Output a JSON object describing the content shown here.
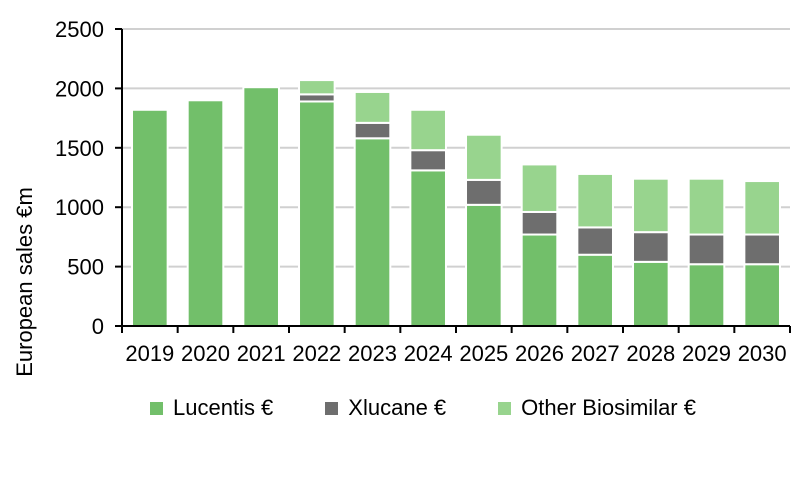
{
  "chart_data": {
    "type": "bar",
    "stacked": true,
    "categories": [
      "2019",
      "2020",
      "2021",
      "2022",
      "2023",
      "2024",
      "2025",
      "2026",
      "2027",
      "2028",
      "2029",
      "2030"
    ],
    "series": [
      {
        "name": "Lucentis €",
        "color": "#72bf6a",
        "values": [
          1820,
          1900,
          2010,
          1890,
          1580,
          1310,
          1020,
          770,
          600,
          540,
          520,
          520
        ]
      },
      {
        "name": "Xlucane €",
        "color": "#6e6e6e",
        "values": [
          0,
          0,
          0,
          60,
          130,
          170,
          210,
          190,
          230,
          250,
          250,
          250
        ]
      },
      {
        "name": "Other Biosimilar €",
        "color": "#98d48e",
        "values": [
          0,
          0,
          0,
          120,
          260,
          340,
          380,
          400,
          450,
          450,
          470,
          450
        ]
      }
    ],
    "ylabel": "European sales €m",
    "ylim": [
      0,
      2500
    ],
    "yticks": [
      0,
      500,
      1000,
      1500,
      2000,
      2500
    ],
    "grid": true,
    "legend_position": "bottom"
  }
}
